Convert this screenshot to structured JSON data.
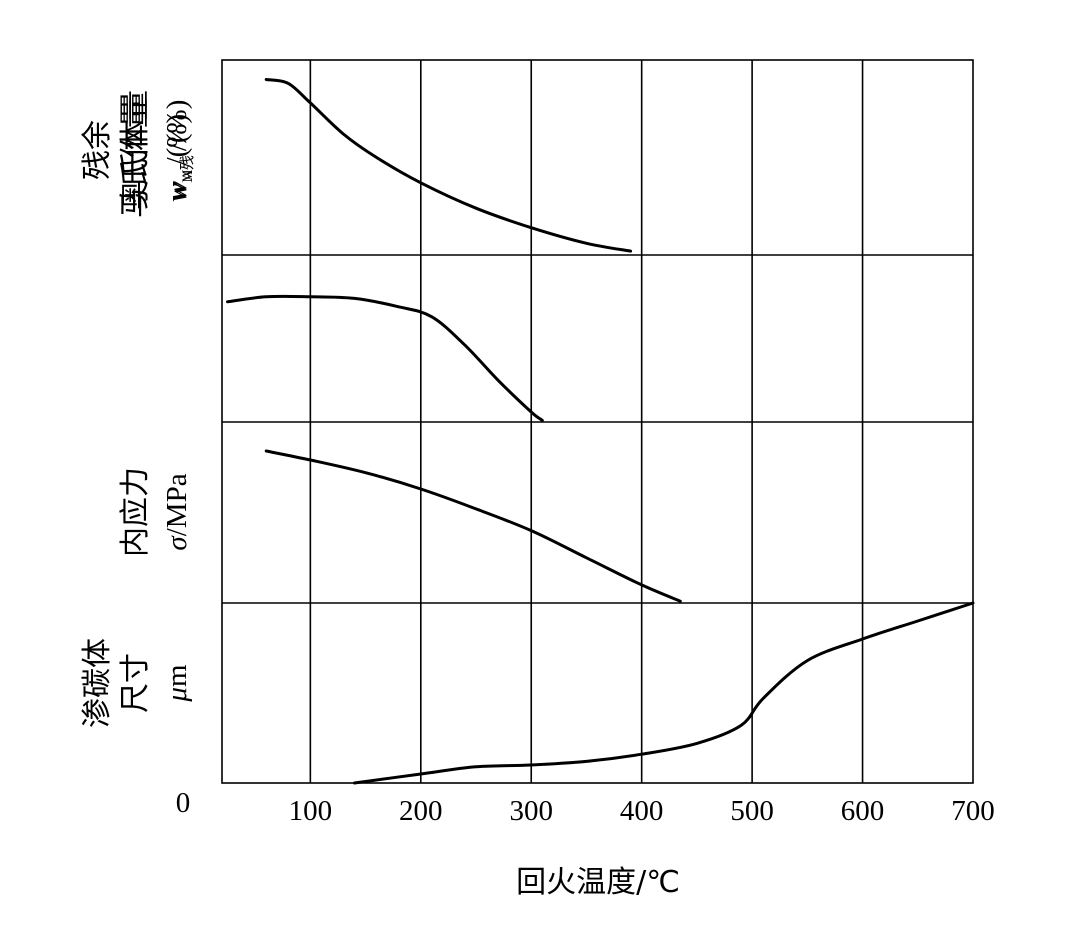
{
  "chart_data": {
    "type": "line",
    "xlabel": "回火温度/℃",
    "xlim": [
      20,
      700
    ],
    "x_ticks": [
      100,
      200,
      300,
      400,
      500,
      600,
      700
    ],
    "x_tick_labels": [
      "100",
      "200",
      "300",
      "400",
      "500",
      "600",
      "700"
    ],
    "zero_label": "0",
    "grid": true,
    "panels": [
      {
        "id": "martensite",
        "ylabel_lines": [
          "马氏体量"
        ],
        "symbol": "w",
        "subscript": "M",
        "unit": "/(%)",
        "ylim": [
          0,
          1
        ],
        "series": [
          {
            "x": [
              60,
              80,
              100,
              130,
              160,
              200,
              250,
              300,
              350,
              390
            ],
            "y": [
              0.9,
              0.88,
              0.78,
              0.62,
              0.5,
              0.37,
              0.24,
              0.14,
              0.06,
              0.02
            ]
          }
        ]
      },
      {
        "id": "retained-austenite",
        "ylabel_lines": [
          "残余",
          "奥氏体量"
        ],
        "symbol": "w",
        "subscript": "A残",
        "unit": "/(%)",
        "ylim": [
          0,
          1
        ],
        "series": [
          {
            "x": [
              25,
              60,
              100,
              140,
              180,
              210,
              240,
              270,
              300,
              310
            ],
            "y": [
              0.72,
              0.75,
              0.75,
              0.74,
              0.69,
              0.63,
              0.46,
              0.25,
              0.06,
              0.01
            ]
          }
        ]
      },
      {
        "id": "internal-stress",
        "ylabel_lines": [
          "内应力"
        ],
        "symbol": "σ",
        "subscript": "",
        "unit": "/MPa",
        "ylim": [
          0,
          1
        ],
        "series": [
          {
            "x": [
              60,
              100,
              150,
              200,
              250,
              300,
              350,
              400,
              435
            ],
            "y": [
              0.84,
              0.79,
              0.72,
              0.63,
              0.52,
              0.4,
              0.25,
              0.1,
              0.01
            ]
          }
        ]
      },
      {
        "id": "carbide-size",
        "ylabel_lines": [
          "渗碳体",
          "尺寸"
        ],
        "symbol": "μ",
        "subscript": "",
        "unit": "m",
        "ylim": [
          0,
          1
        ],
        "series": [
          {
            "x": [
              140,
              200,
              250,
              300,
              350,
              400,
              450,
              490,
              510,
              550,
              600,
              650,
              700
            ],
            "y": [
              0.0,
              0.05,
              0.09,
              0.1,
              0.12,
              0.16,
              0.22,
              0.32,
              0.47,
              0.68,
              0.8,
              0.9,
              1.0
            ]
          }
        ]
      }
    ]
  }
}
